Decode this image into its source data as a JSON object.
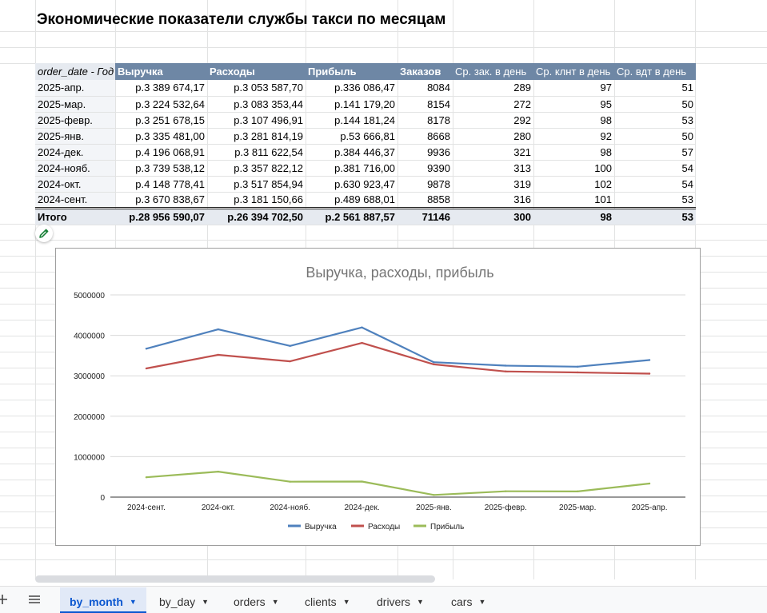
{
  "title": "Экономические показатели службы такси по месяцам",
  "pivot": {
    "headers": [
      "order_date - Год",
      "Выручка",
      "Расходы",
      "Прибыль",
      "Заказов",
      "Ср. зак. в день",
      "Ср. клнт в день",
      "Ср. вдт в день"
    ],
    "rows": [
      [
        "2025-апр.",
        "р.3 389 674,17",
        "р.3 053 587,70",
        "р.336 086,47",
        "8084",
        "289",
        "97",
        "51"
      ],
      [
        "2025-мар.",
        "р.3 224 532,64",
        "р.3 083 353,44",
        "р.141 179,20",
        "8154",
        "272",
        "95",
        "50"
      ],
      [
        "2025-февр.",
        "р.3 251 678,15",
        "р.3 107 496,91",
        "р.144 181,24",
        "8178",
        "292",
        "98",
        "53"
      ],
      [
        "2025-янв.",
        "р.3 335 481,00",
        "р.3 281 814,19",
        "р.53 666,81",
        "8668",
        "280",
        "92",
        "50"
      ],
      [
        "2024-дек.",
        "р.4 196 068,91",
        "р.3 811 622,54",
        "р.384 446,37",
        "9936",
        "321",
        "98",
        "57"
      ],
      [
        "2024-нояб.",
        "р.3 739 538,12",
        "р.3 357 822,12",
        "р.381 716,00",
        "9390",
        "313",
        "100",
        "54"
      ],
      [
        "2024-окт.",
        "р.4 148 778,41",
        "р.3 517 854,94",
        "р.630 923,47",
        "9878",
        "319",
        "102",
        "54"
      ],
      [
        "2024-сент.",
        "р.3 670 838,67",
        "р.3 181 150,66",
        "р.489 688,01",
        "8858",
        "316",
        "101",
        "53"
      ]
    ],
    "total": [
      "Итого",
      "р.28 956 590,07",
      "р.26 394 702,50",
      "р.2 561 887,57",
      "71146",
      "300",
      "98",
      "53"
    ]
  },
  "chart_data": {
    "type": "line",
    "title": "Выручка, расходы, прибыль",
    "categories": [
      "2024-сент.",
      "2024-окт.",
      "2024-нояб.",
      "2024-дек.",
      "2025-янв.",
      "2025-февр.",
      "2025-мар.",
      "2025-апр."
    ],
    "ylim": [
      0,
      5000000
    ],
    "yticks": [
      "0",
      "1000000",
      "2000000",
      "3000000",
      "4000000",
      "5000000"
    ],
    "grid": true,
    "legend": "bottom",
    "series": [
      {
        "name": "Выручка",
        "color": "#4f81bd",
        "values": [
          3670838.67,
          4148778.41,
          3739538.12,
          4196068.91,
          3335481.0,
          3251678.15,
          3224532.64,
          3389674.17
        ]
      },
      {
        "name": "Расходы",
        "color": "#c0504d",
        "values": [
          3181150.66,
          3517854.94,
          3357822.12,
          3811622.54,
          3281814.19,
          3107496.91,
          3083353.44,
          3053587.7
        ]
      },
      {
        "name": "Прибыль",
        "color": "#9bbb59",
        "values": [
          489688.01,
          630923.47,
          381716.0,
          384446.37,
          53666.81,
          144181.24,
          141179.2,
          336086.47
        ]
      }
    ]
  },
  "tabs": [
    {
      "label": "by_month",
      "active": true
    },
    {
      "label": "by_day",
      "active": false
    },
    {
      "label": "orders",
      "active": false
    },
    {
      "label": "clients",
      "active": false
    },
    {
      "label": "drivers",
      "active": false
    },
    {
      "label": "cars",
      "active": false
    }
  ],
  "icons": {
    "add_sheet": "plus-icon",
    "all_sheets": "menu-icon",
    "edit": "pencil-icon",
    "tab_menu": "caret-down-icon"
  }
}
